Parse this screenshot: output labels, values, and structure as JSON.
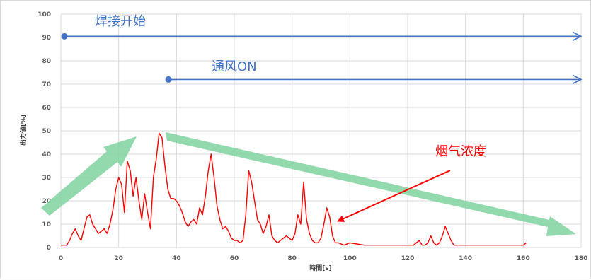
{
  "chart_data": {
    "type": "line",
    "title": "",
    "xlabel": "時間[s]",
    "ylabel": "出力値[%]",
    "xlim": [
      0,
      180
    ],
    "ylim": [
      0,
      100
    ],
    "x_ticks": [
      "0",
      "20",
      "40",
      "60",
      "80",
      "100",
      "120",
      "140",
      "160",
      "180"
    ],
    "y_ticks": [
      "0",
      "10",
      "20",
      "30",
      "40",
      "50",
      "60",
      "70",
      "80",
      "90",
      "100"
    ],
    "grid": true,
    "legend": "none",
    "colors": {
      "series": "#ff0000",
      "annotation_blue": "#4472c4",
      "trend_green": "#7fd3a0",
      "annotation_red": "#ff0000"
    },
    "series": [
      {
        "x": [
          0,
          2,
          3,
          4,
          5,
          6,
          7,
          8,
          9,
          10,
          11,
          12,
          13,
          14,
          15,
          16,
          17,
          18,
          19,
          20,
          21,
          22,
          23,
          24,
          25,
          26,
          27,
          28,
          29,
          30,
          31,
          32,
          33,
          34,
          35,
          36,
          37,
          38,
          39,
          40,
          41,
          42,
          43,
          44,
          45,
          46,
          47,
          48,
          49,
          50,
          51,
          52,
          53,
          54,
          55,
          56,
          57,
          58,
          59,
          60,
          61,
          62,
          63,
          64,
          65,
          66,
          67,
          68,
          69,
          70,
          71,
          72,
          73,
          74,
          75,
          76,
          77,
          78,
          79,
          80,
          81,
          82,
          83,
          84,
          85,
          86,
          87,
          88,
          89,
          90,
          91,
          92,
          93,
          94,
          95,
          96,
          98,
          100,
          105,
          110,
          115,
          120,
          122,
          124,
          125,
          126,
          127,
          128,
          129,
          130,
          131,
          132,
          133,
          134,
          135,
          136,
          138,
          140,
          145,
          150,
          155,
          160,
          161
        ],
        "y": [
          1,
          1,
          3,
          6,
          8,
          5,
          3,
          8,
          13,
          14,
          10,
          8,
          6,
          7,
          8,
          6,
          10,
          16,
          25,
          30,
          27,
          15,
          37,
          33,
          22,
          30,
          20,
          12,
          23,
          15,
          8,
          30,
          38,
          49,
          47,
          35,
          25,
          21,
          21,
          20,
          18,
          15,
          11,
          9,
          11,
          12,
          10,
          17,
          14,
          22,
          33,
          40,
          30,
          18,
          12,
          8,
          9,
          7,
          4,
          3,
          3,
          2,
          3,
          14,
          33,
          28,
          20,
          12,
          10,
          6,
          9,
          14,
          5,
          3,
          2,
          3,
          4,
          5,
          4,
          3,
          6,
          14,
          10,
          28,
          12,
          6,
          3,
          2,
          2,
          4,
          10,
          17,
          13,
          5,
          2,
          2,
          1,
          2,
          1,
          1,
          1,
          1,
          1,
          3,
          1,
          1,
          2,
          5,
          2,
          1,
          2,
          5,
          9,
          6,
          3,
          1,
          1,
          1,
          1,
          1,
          1,
          1,
          2
        ]
      }
    ],
    "annotations": {
      "welding_start": "焊接开始",
      "ventilation_on": "通风ON",
      "smoke_concentration": "烟气浓度"
    }
  }
}
